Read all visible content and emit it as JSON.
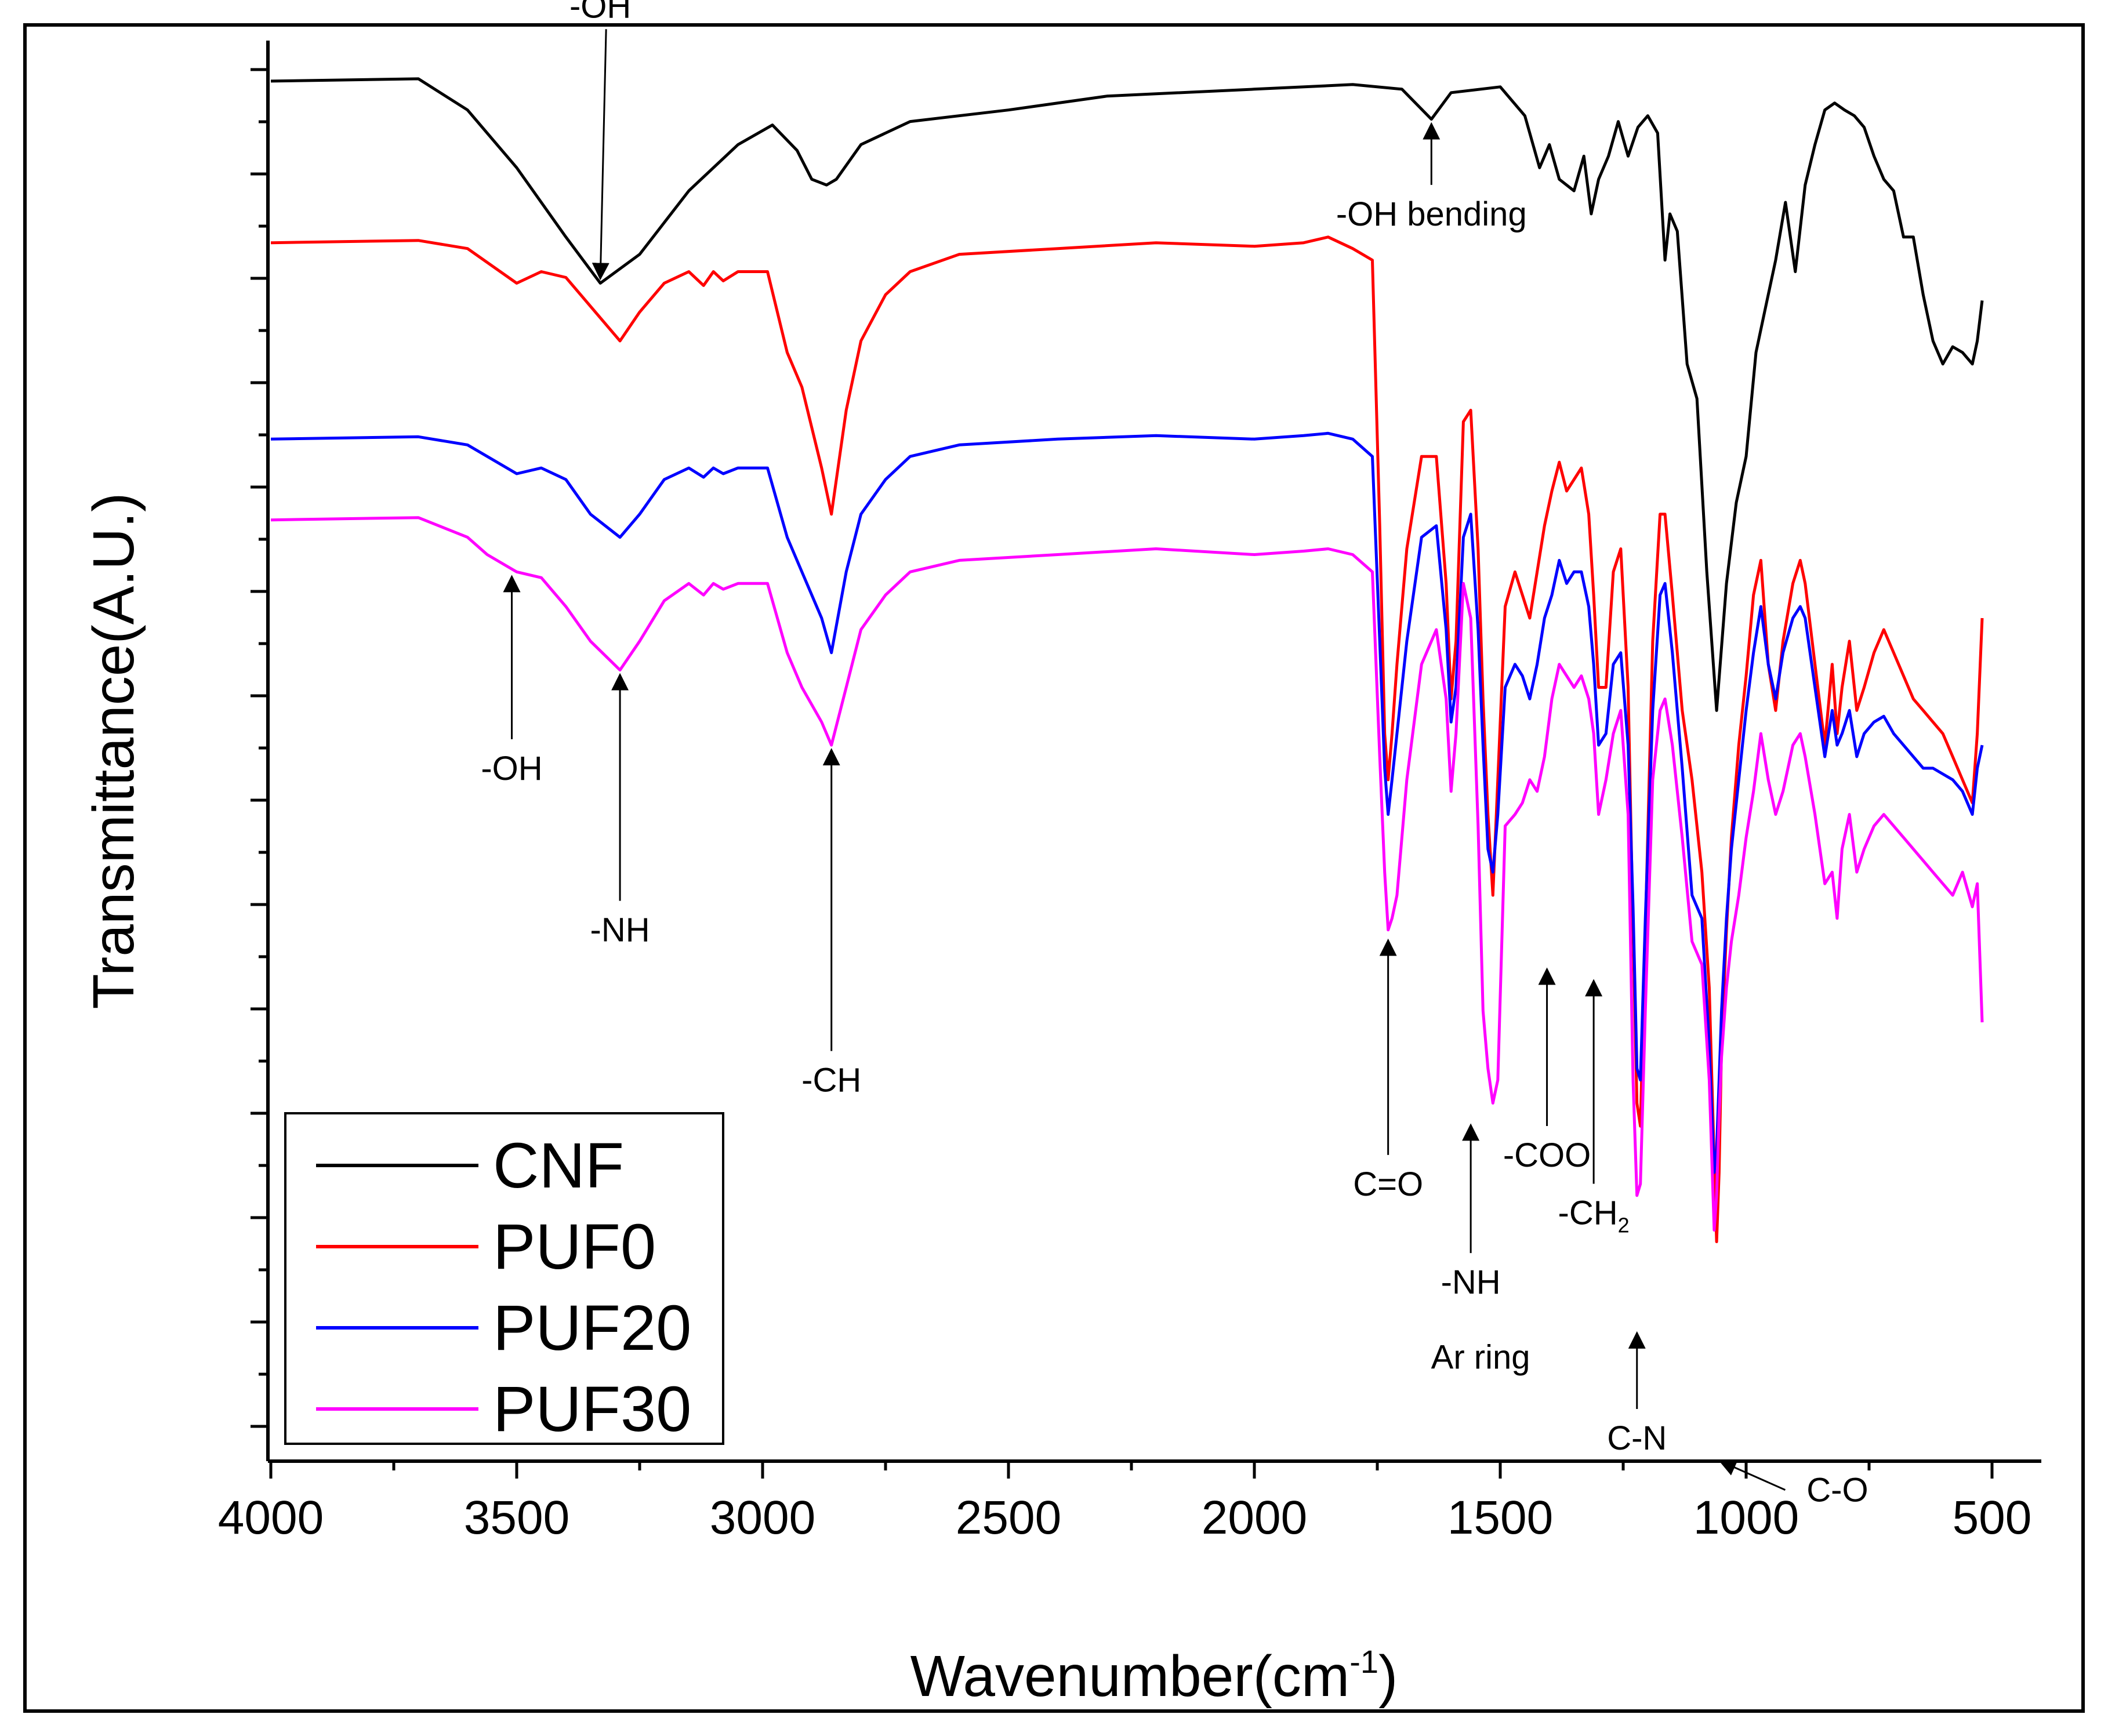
{
  "chart_data": {
    "type": "line",
    "title": "",
    "xlabel": "Wavenumber(cm",
    "xlabel_sup": "-1",
    "xlabel_close": ")",
    "ylabel": "Transmittance(A.U.)",
    "xlim": [
      4000,
      500
    ],
    "x_reversed": true,
    "ylim": [
      0,
      12
    ],
    "yticks_labeled": false,
    "xticks": [
      "4000",
      "3500",
      "3000",
      "2500",
      "2000",
      "1500",
      "1000",
      "500"
    ],
    "xtick_values": [
      4000,
      3500,
      3000,
      2500,
      2000,
      1500,
      1000,
      500
    ],
    "legend": {
      "placement": "bottom-left",
      "entries": [
        "CNF",
        "PUF0",
        "PUF20",
        "PUF30"
      ]
    },
    "series": [
      {
        "name": "CNF",
        "color": "#000000",
        "x": [
          4000,
          3700,
          3600,
          3500,
          3400,
          3330,
          3250,
          3150,
          3050,
          2980,
          2930,
          2900,
          2870,
          2850,
          2800,
          2700,
          2500,
          2300,
          2000,
          1800,
          1700,
          1640,
          1600,
          1500,
          1450,
          1420,
          1400,
          1380,
          1350,
          1330,
          1315,
          1300,
          1280,
          1260,
          1240,
          1220,
          1200,
          1180,
          1165,
          1155,
          1140,
          1120,
          1100,
          1080,
          1060,
          1040,
          1020,
          1000,
          980,
          960,
          940,
          920,
          900,
          880,
          860,
          840,
          820,
          800,
          780,
          760,
          740,
          720,
          700,
          680,
          660,
          640,
          620,
          600,
          580,
          560,
          540,
          530,
          520
        ],
        "y": [
          11.85,
          11.87,
          11.6,
          11.1,
          10.5,
          10.1,
          10.35,
          10.9,
          11.3,
          11.47,
          11.25,
          11.0,
          10.95,
          11.0,
          11.3,
          11.5,
          11.6,
          11.72,
          11.78,
          11.82,
          11.78,
          11.52,
          11.75,
          11.8,
          11.55,
          11.1,
          11.3,
          11.0,
          10.9,
          11.2,
          10.7,
          11.0,
          11.2,
          11.5,
          11.2,
          11.45,
          11.55,
          11.4,
          10.3,
          10.7,
          10.55,
          9.4,
          9.1,
          7.6,
          6.4,
          7.5,
          8.2,
          8.6,
          9.5,
          9.9,
          10.3,
          10.8,
          10.2,
          10.95,
          11.3,
          11.6,
          11.66,
          11.6,
          11.55,
          11.45,
          11.2,
          11.0,
          10.9,
          10.5,
          10.5,
          10.0,
          9.6,
          9.4,
          9.55,
          9.5,
          9.4,
          9.6,
          9.95
        ]
      },
      {
        "name": "PUF0",
        "color": "#ff0000",
        "x": [
          4000,
          3700,
          3600,
          3500,
          3450,
          3400,
          3350,
          3290,
          3250,
          3200,
          3150,
          3120,
          3100,
          3080,
          3050,
          2990,
          2950,
          2920,
          2880,
          2860,
          2830,
          2800,
          2750,
          2700,
          2600,
          2400,
          2200,
          2000,
          1900,
          1850,
          1800,
          1760,
          1745,
          1735,
          1728,
          1720,
          1710,
          1690,
          1660,
          1630,
          1610,
          1600,
          1590,
          1575,
          1560,
          1545,
          1535,
          1525,
          1515,
          1505,
          1490,
          1470,
          1455,
          1440,
          1425,
          1410,
          1395,
          1380,
          1365,
          1350,
          1335,
          1320,
          1310,
          1300,
          1285,
          1270,
          1255,
          1240,
          1230,
          1222,
          1215,
          1205,
          1190,
          1175,
          1165,
          1150,
          1130,
          1110,
          1090,
          1075,
          1065,
          1060,
          1055,
          1050,
          1040,
          1030,
          1015,
          1000,
          985,
          970,
          955,
          940,
          925,
          905,
          890,
          880,
          860,
          840,
          825,
          815,
          805,
          790,
          775,
          760,
          740,
          720,
          700,
          680,
          660,
          640,
          620,
          600,
          580,
          560,
          540,
          530,
          520
        ],
        "y": [
          10.45,
          10.47,
          10.4,
          10.1,
          10.2,
          10.15,
          9.9,
          9.6,
          9.85,
          10.1,
          10.2,
          10.08,
          10.2,
          10.12,
          10.2,
          10.2,
          9.5,
          9.2,
          8.5,
          8.1,
          9.0,
          9.6,
          10.0,
          10.2,
          10.35,
          10.4,
          10.45,
          10.42,
          10.45,
          10.5,
          10.4,
          10.3,
          8.0,
          6.2,
          5.8,
          6.2,
          6.8,
          7.8,
          8.6,
          8.6,
          7.5,
          6.5,
          7.0,
          8.9,
          9.0,
          7.8,
          6.5,
          5.5,
          4.8,
          5.8,
          7.3,
          7.6,
          7.4,
          7.2,
          7.6,
          8.0,
          8.3,
          8.55,
          8.3,
          8.4,
          8.5,
          8.1,
          7.4,
          6.6,
          6.6,
          7.6,
          7.8,
          6.6,
          4.5,
          3.0,
          2.8,
          4.5,
          7.0,
          8.1,
          8.1,
          7.4,
          6.4,
          5.8,
          5.0,
          4.0,
          2.5,
          1.8,
          2.4,
          3.5,
          4.5,
          5.3,
          6.1,
          6.7,
          7.4,
          7.7,
          6.8,
          6.4,
          7.0,
          7.5,
          7.7,
          7.5,
          6.8,
          6.1,
          6.8,
          6.2,
          6.6,
          7.0,
          6.4,
          6.6,
          6.9,
          7.1,
          6.9,
          6.7,
          6.5,
          6.4,
          6.3,
          6.2,
          6.0,
          5.8,
          5.6,
          6.2,
          7.2
        ]
      },
      {
        "name": "PUF20",
        "color": "#0000ff",
        "x": [
          4000,
          3700,
          3600,
          3500,
          3450,
          3400,
          3350,
          3290,
          3250,
          3200,
          3150,
          3120,
          3100,
          3080,
          3050,
          2990,
          2950,
          2920,
          2880,
          2860,
          2830,
          2800,
          2750,
          2700,
          2600,
          2400,
          2200,
          2000,
          1900,
          1850,
          1800,
          1760,
          1745,
          1735,
          1728,
          1720,
          1710,
          1690,
          1660,
          1630,
          1610,
          1600,
          1590,
          1575,
          1560,
          1545,
          1535,
          1525,
          1515,
          1505,
          1490,
          1470,
          1455,
          1440,
          1425,
          1410,
          1395,
          1380,
          1365,
          1350,
          1335,
          1320,
          1310,
          1300,
          1285,
          1270,
          1255,
          1240,
          1230,
          1222,
          1215,
          1205,
          1190,
          1175,
          1165,
          1150,
          1130,
          1110,
          1090,
          1075,
          1065,
          1060,
          1055,
          1050,
          1040,
          1030,
          1015,
          1000,
          985,
          970,
          955,
          940,
          925,
          905,
          890,
          880,
          860,
          840,
          825,
          815,
          805,
          790,
          775,
          760,
          740,
          720,
          700,
          680,
          660,
          640,
          620,
          600,
          580,
          560,
          540,
          530,
          520
        ],
        "y": [
          8.75,
          8.77,
          8.7,
          8.45,
          8.5,
          8.4,
          8.1,
          7.9,
          8.1,
          8.4,
          8.5,
          8.42,
          8.5,
          8.45,
          8.5,
          8.5,
          7.9,
          7.6,
          7.2,
          6.9,
          7.6,
          8.1,
          8.4,
          8.6,
          8.7,
          8.75,
          8.78,
          8.75,
          8.78,
          8.8,
          8.75,
          8.6,
          7.0,
          5.9,
          5.5,
          5.8,
          6.2,
          7.0,
          7.9,
          8.0,
          7.1,
          6.3,
          6.6,
          7.9,
          8.1,
          7.1,
          6.1,
          5.2,
          5.0,
          5.5,
          6.6,
          6.8,
          6.7,
          6.5,
          6.8,
          7.2,
          7.4,
          7.7,
          7.5,
          7.6,
          7.6,
          7.3,
          6.8,
          6.1,
          6.2,
          6.8,
          6.9,
          6.1,
          4.7,
          3.3,
          3.2,
          4.6,
          6.4,
          7.4,
          7.5,
          6.9,
          5.9,
          4.8,
          4.6,
          3.5,
          2.4,
          2.6,
          3.2,
          3.8,
          4.6,
          5.2,
          5.8,
          6.4,
          6.9,
          7.3,
          6.8,
          6.5,
          6.9,
          7.2,
          7.3,
          7.2,
          6.6,
          6.0,
          6.4,
          6.1,
          6.2,
          6.4,
          6.0,
          6.2,
          6.3,
          6.35,
          6.2,
          6.1,
          6.0,
          5.9,
          5.9,
          5.85,
          5.8,
          5.7,
          5.5,
          5.9,
          6.1
        ]
      },
      {
        "name": "PUF30",
        "color": "#ff00ff",
        "x": [
          4000,
          3700,
          3600,
          3560,
          3500,
          3450,
          3400,
          3350,
          3290,
          3250,
          3200,
          3150,
          3120,
          3100,
          3080,
          3050,
          2990,
          2950,
          2920,
          2880,
          2860,
          2830,
          2800,
          2750,
          2700,
          2600,
          2400,
          2200,
          2000,
          1900,
          1850,
          1800,
          1760,
          1745,
          1735,
          1728,
          1720,
          1710,
          1690,
          1660,
          1630,
          1610,
          1600,
          1590,
          1575,
          1560,
          1545,
          1535,
          1525,
          1515,
          1505,
          1490,
          1470,
          1455,
          1440,
          1425,
          1410,
          1395,
          1380,
          1365,
          1350,
          1335,
          1320,
          1310,
          1300,
          1285,
          1270,
          1255,
          1240,
          1230,
          1222,
          1215,
          1205,
          1190,
          1175,
          1165,
          1150,
          1130,
          1110,
          1090,
          1075,
          1065,
          1060,
          1055,
          1050,
          1040,
          1030,
          1015,
          1000,
          985,
          970,
          955,
          940,
          925,
          905,
          890,
          880,
          860,
          840,
          825,
          815,
          805,
          790,
          775,
          760,
          740,
          720,
          700,
          680,
          660,
          640,
          620,
          600,
          580,
          560,
          540,
          530,
          520
        ],
        "y": [
          8.05,
          8.07,
          7.9,
          7.75,
          7.6,
          7.55,
          7.3,
          7.0,
          6.75,
          7.0,
          7.35,
          7.5,
          7.4,
          7.5,
          7.45,
          7.5,
          7.5,
          6.9,
          6.6,
          6.3,
          6.1,
          6.6,
          7.1,
          7.4,
          7.6,
          7.7,
          7.75,
          7.8,
          7.75,
          7.78,
          7.8,
          7.75,
          7.6,
          6.0,
          5.0,
          4.5,
          4.6,
          4.8,
          5.8,
          6.8,
          7.1,
          6.5,
          5.7,
          6.2,
          7.5,
          7.2,
          5.4,
          3.8,
          3.3,
          3.0,
          3.2,
          5.4,
          5.5,
          5.6,
          5.8,
          5.7,
          6.0,
          6.5,
          6.8,
          6.7,
          6.6,
          6.7,
          6.5,
          6.2,
          5.5,
          5.8,
          6.2,
          6.4,
          5.5,
          3.2,
          2.2,
          2.3,
          3.8,
          5.8,
          6.4,
          6.5,
          6.1,
          5.3,
          4.4,
          4.2,
          3.2,
          1.9,
          2.2,
          2.9,
          3.4,
          4.0,
          4.4,
          4.8,
          5.3,
          5.7,
          6.2,
          5.8,
          5.5,
          5.7,
          6.1,
          6.2,
          6.0,
          5.5,
          4.9,
          5.0,
          4.6,
          5.2,
          5.5,
          5.0,
          5.2,
          5.4,
          5.5,
          5.4,
          5.3,
          5.2,
          5.1,
          5.0,
          4.9,
          4.8,
          5.0,
          4.7,
          4.9,
          3.7
        ]
      }
    ],
    "annotations": [
      {
        "text": "-OH",
        "x": 3330,
        "y": 10.1,
        "label_y": 12.4,
        "dir": "down"
      },
      {
        "text": "-OH bending",
        "x": 1640,
        "y": 11.52,
        "label_y": 10.6,
        "dir": "up"
      },
      {
        "text": "-OH",
        "x": 3510,
        "y": 7.6,
        "label_y": 5.8,
        "dir": "up"
      },
      {
        "text": "-NH",
        "x": 3290,
        "y": 6.75,
        "label_y": 4.4,
        "dir": "up"
      },
      {
        "text": "-CH",
        "x": 2860,
        "y": 6.1,
        "label_y": 3.1,
        "dir": "up"
      },
      {
        "text": "C=O",
        "x": 1728,
        "y": 4.45,
        "label_y": 2.2,
        "dir": "up"
      },
      {
        "text": "-COO",
        "x": 1405,
        "y": 4.2,
        "label_y": 2.45,
        "dir": "up"
      },
      {
        "text": "-CH",
        "sub": "2",
        "x": 1310,
        "y": 4.1,
        "label_y": 1.95,
        "dir": "up"
      },
      {
        "text": "-NH",
        "x": 1560,
        "y": 2.85,
        "label_y": 1.35,
        "dir": "up"
      },
      {
        "text": "C-N",
        "x": 1222,
        "y": 1.05,
        "label_y": 0.0,
        "dir": "up"
      },
      {
        "text": "C-O",
        "x": 1062,
        "y": -0.1,
        "label_y": -0.45,
        "dir": "left"
      },
      {
        "text": "Ar ring",
        "x": 1540,
        "y": 0.7,
        "label_y": 0.7,
        "dir": "none"
      }
    ]
  }
}
